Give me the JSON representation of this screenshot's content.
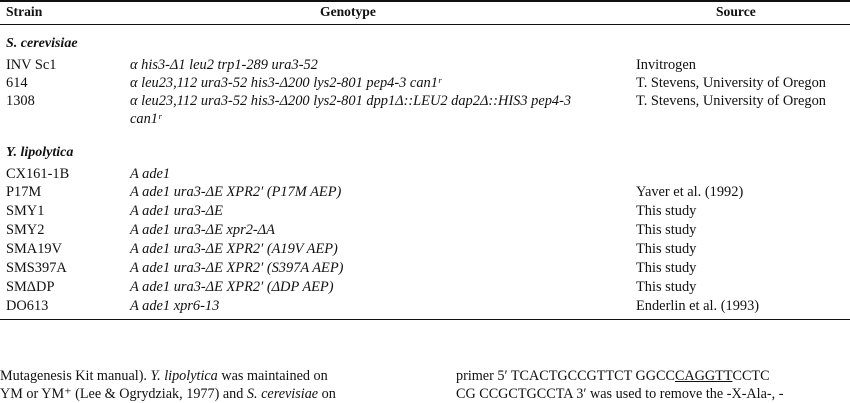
{
  "table": {
    "headers": {
      "strain": "Strain",
      "genotype": "Genotype",
      "source": "Source"
    },
    "groups": [
      {
        "label": "S. cerevisiae",
        "rows": [
          {
            "strain": "INV Sc1",
            "genotype": "α his3-Δ1 leu2 trp1-289 ura3-52",
            "source": "Invitrogen"
          },
          {
            "strain": "614",
            "genotype": "α leu23,112 ura3-52 his3-Δ200 lys2-801 pep4-3 can1ʳ",
            "source": "T. Stevens, University of Oregon"
          },
          {
            "strain": "1308",
            "genotype": "α leu23,112 ura3-52 his3-Δ200 lys2-801 dpp1Δ::LEU2 dap2Δ::HIS3 pep4-3",
            "genotype_cont": "can1ʳ",
            "source": "T. Stevens, University of Oregon"
          }
        ]
      },
      {
        "label": "Y. lipolytica",
        "rows": [
          {
            "strain": "CX161-1B",
            "genotype": "A ade1",
            "source": ""
          },
          {
            "strain": "P17M",
            "genotype": "A ade1 ura3-ΔE XPR2′ (P17M AEP)",
            "source": "Yaver et al. (1992)"
          },
          {
            "strain": "SMY1",
            "genotype": "A ade1 ura3-ΔE",
            "source": "This study"
          },
          {
            "strain": "SMY2",
            "genotype": "A ade1 ura3-ΔE xpr2-ΔA",
            "source": "This study"
          },
          {
            "strain": "SMA19V",
            "genotype": "A ade1 ura3-ΔE XPR2′ (A19V AEP)",
            "source": "This study"
          },
          {
            "strain": "SMS397A",
            "genotype": "A ade1 ura3-ΔE XPR2′ (S397A AEP)",
            "source": "This study"
          },
          {
            "strain": "SMΔDP",
            "genotype": "A ade1 ura3-ΔE XPR2′ (ΔDP AEP)",
            "source": "This study"
          },
          {
            "strain": "DO613",
            "genotype": "A ade1 xpr6-13",
            "source": "Enderlin et al. (1993)"
          }
        ]
      }
    ]
  },
  "body_text": {
    "left_line1_a": "Mutagenesis Kit manual). ",
    "left_line1_b": "Y. lipolytica",
    "left_line1_c": " was maintained on",
    "left_line2_a": "YM or YM⁺ (Lee & Ogrydziak, 1977) and ",
    "left_line2_b": "S. cerevisiae",
    "left_line2_c": " on",
    "right_line1_a": "primer 5′ TCACTGCCGTTCT GGCC",
    "right_line1_u": "CAGGTT",
    "right_line1_b": "CCTC",
    "right_line2": "CG CCGCTGCCTA 3′ was used to remove the -X-Ala-, -"
  }
}
